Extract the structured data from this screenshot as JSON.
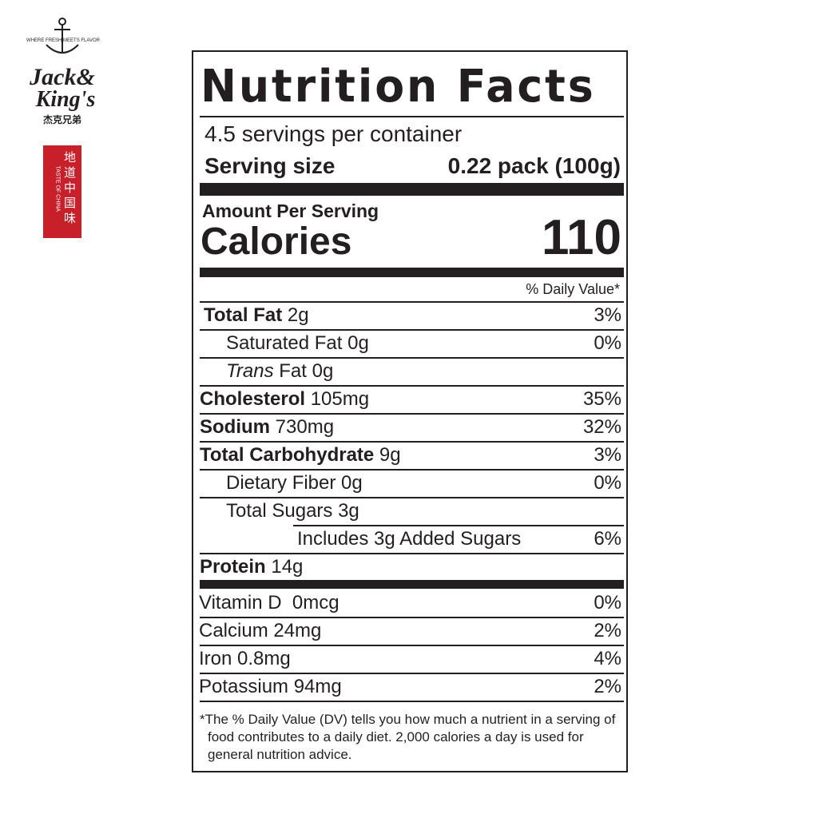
{
  "brand": {
    "logo_text": "Jack & King's",
    "logo_tagline": "WHERE FRESH MEETS FLAVOR",
    "logo_chinese": "杰克兄弟",
    "seal_chinese": "地道中国味",
    "seal_english": "TASTE OF CHINA",
    "seal_color": "#c8202a"
  },
  "label": {
    "title": "Nutrition Facts",
    "servings_per_container": "4.5 servings per container",
    "serving_size_label": "Serving size",
    "serving_size_value": "0.22 pack (100g)",
    "amount_per_serving": "Amount Per Serving",
    "calories_label": "Calories",
    "calories_value": "110",
    "daily_value_header": "% Daily Value*",
    "nutrients": [
      {
        "name": "Total Fat",
        "amount": "2g",
        "dv": "3%",
        "bold": true,
        "indent": 0
      },
      {
        "name": "Saturated Fat",
        "amount": "0g",
        "dv": "0%",
        "bold": false,
        "indent": 1
      },
      {
        "name": "Trans",
        "name_suffix": "Fat",
        "amount": "0g",
        "dv": "",
        "bold": false,
        "indent": 1,
        "italic_prefix": true
      },
      {
        "name": "Cholesterol",
        "amount": "105mg",
        "dv": "35%",
        "bold": true,
        "indent": 0
      },
      {
        "name": "Sodium",
        "amount": "730mg",
        "dv": "32%",
        "bold": true,
        "indent": 0
      },
      {
        "name": "Total Carbohydrate",
        "amount": "9g",
        "dv": "3%",
        "bold": true,
        "indent": 0
      },
      {
        "name": "Dietary Fiber",
        "amount": "0g",
        "dv": "0%",
        "bold": false,
        "indent": 1
      },
      {
        "name": "Total Sugars",
        "amount": "3g",
        "dv": "",
        "bold": false,
        "indent": 1
      },
      {
        "name": "Includes 3g Added Sugars",
        "amount": "",
        "dv": "6%",
        "bold": false,
        "indent": 2
      },
      {
        "name": "Protein",
        "amount": "14g",
        "dv": "",
        "bold": true,
        "indent": 0
      }
    ],
    "vitamins": [
      {
        "name": "Vitamin D",
        "amount": "0mcg",
        "dv": "0%"
      },
      {
        "name": "Calcium",
        "amount": "24mg",
        "dv": "2%"
      },
      {
        "name": "Iron",
        "amount": "0.8mg",
        "dv": "4%"
      },
      {
        "name": "Potassium",
        "amount": "94mg",
        "dv": "2%"
      }
    ],
    "footnote": "*The % Daily Value (DV) tells you how much a nutrient in a serving of food contributes to a daily diet. 2,000 calories a day is used for general nutrition advice."
  }
}
